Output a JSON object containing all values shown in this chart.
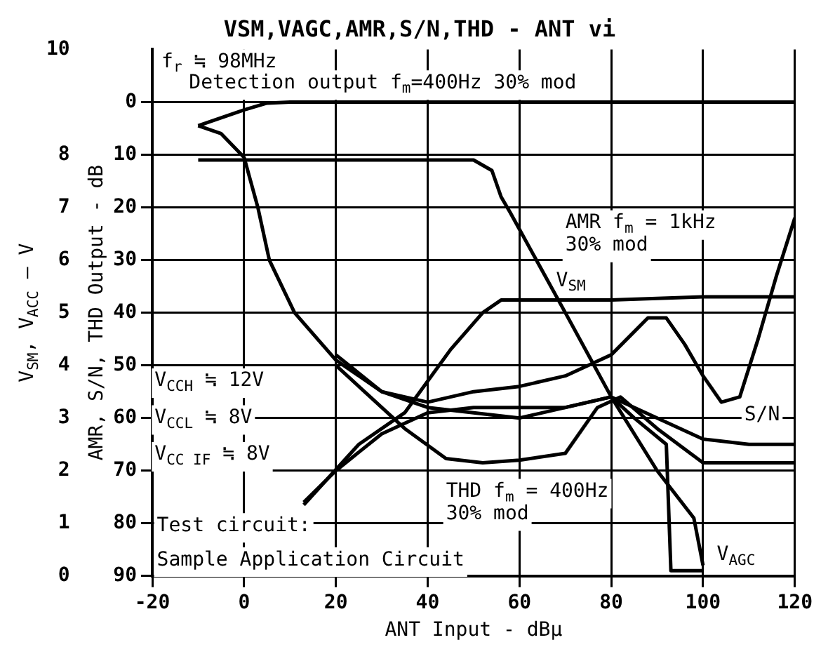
{
  "chart_data": {
    "type": "line",
    "title": "VSM,VAGC,AMR,S/N,THD - ANT vi",
    "xlabel": "ANT Input - dBμ",
    "ylabel": "AMR, S/N, THD Output - dB",
    "y2label": "V$_{SM}$, V$_{ACC}$ — V",
    "xlim": [
      -20,
      120
    ],
    "xticks": [
      -20,
      0,
      20,
      40,
      60,
      80,
      100,
      120
    ],
    "ylim": [
      90,
      -10
    ],
    "yticks": [
      90,
      80,
      70,
      60,
      50,
      40,
      30,
      20,
      10,
      0
    ],
    "y2lim": [
      0,
      10
    ],
    "y2ticks": [
      0,
      1,
      2,
      3,
      4,
      5,
      6,
      7,
      8,
      10
    ],
    "grid": true,
    "legend": false,
    "marker": "none",
    "line_style": "solid",
    "series": [
      {
        "color": "#000000",
        "x": [
          -10,
          -5,
          0,
          5,
          10,
          120
        ],
        "values": [
          4.5,
          3,
          1.5,
          0.2,
          0,
          0
        ]
      },
      {
        "color": "#000000",
        "x": [
          -10,
          -5,
          0,
          3,
          5.5,
          11,
          20,
          30,
          40,
          60,
          80,
          85,
          92,
          93,
          100
        ],
        "values": [
          4.5,
          6,
          10.5,
          20,
          30,
          40,
          49,
          55,
          58,
          60,
          56,
          60,
          65,
          89,
          89
        ]
      },
      {
        "color": "#000000",
        "axis": "y2",
        "x": [
          13,
          25,
          35,
          45,
          52,
          56,
          80,
          100,
          120
        ],
        "values": [
          1.35,
          2.5,
          3.1,
          4.3,
          5.0,
          5.24,
          5.24,
          5.3,
          5.3
        ]
      },
      {
        "color": "#000000",
        "axis": "y2",
        "x": [
          -10,
          50,
          54,
          56,
          58,
          70,
          80,
          90,
          98,
          100
        ],
        "values": [
          7.9,
          7.9,
          7.7,
          7.2,
          6.9,
          5.0,
          3.4,
          2.0,
          1.1,
          0.2
        ]
      },
      {
        "color": "#000000",
        "x": [
          20,
          30,
          40,
          50,
          60,
          70,
          80,
          88,
          92,
          96,
          100,
          104,
          108,
          112,
          116,
          120
        ],
        "values": [
          48,
          55,
          57,
          55,
          54,
          52,
          48,
          41,
          41,
          46,
          52,
          57,
          56,
          45,
          33,
          22
        ]
      },
      {
        "color": "#000000",
        "x": [
          13,
          20,
          30,
          40,
          50,
          60,
          70,
          80,
          90,
          100,
          110,
          120
        ],
        "values": [
          76,
          70,
          63,
          59,
          58,
          58,
          58,
          56,
          60,
          64,
          65,
          65
        ]
      },
      {
        "color": "#000000",
        "x": [
          20,
          35,
          44,
          52,
          60,
          70,
          77,
          82,
          90,
          100,
          120
        ],
        "values": [
          50,
          62,
          67.7,
          68.5,
          68,
          66.7,
          58,
          56,
          62,
          68.5,
          68.5
        ]
      }
    ],
    "annotations": [
      "f$_{r}$ ≒ 98MHz",
      "Detection output f$_{m}$=400Hz 30% mod",
      "V$_{CCH}$ ≒ 12V",
      "V$_{CCL}$ ≒ 8V",
      "V$_{CC IF}$ ≒ 8V",
      "Test circuit:",
      "Sample Application Circuit",
      "AMR f$_{m}$ = 1kHz\n30% mod",
      "V$_{SM}$",
      "S/N",
      "THD f$_{m}$ = 400Hz\n30% mod",
      "V$_{AGC}$"
    ]
  }
}
